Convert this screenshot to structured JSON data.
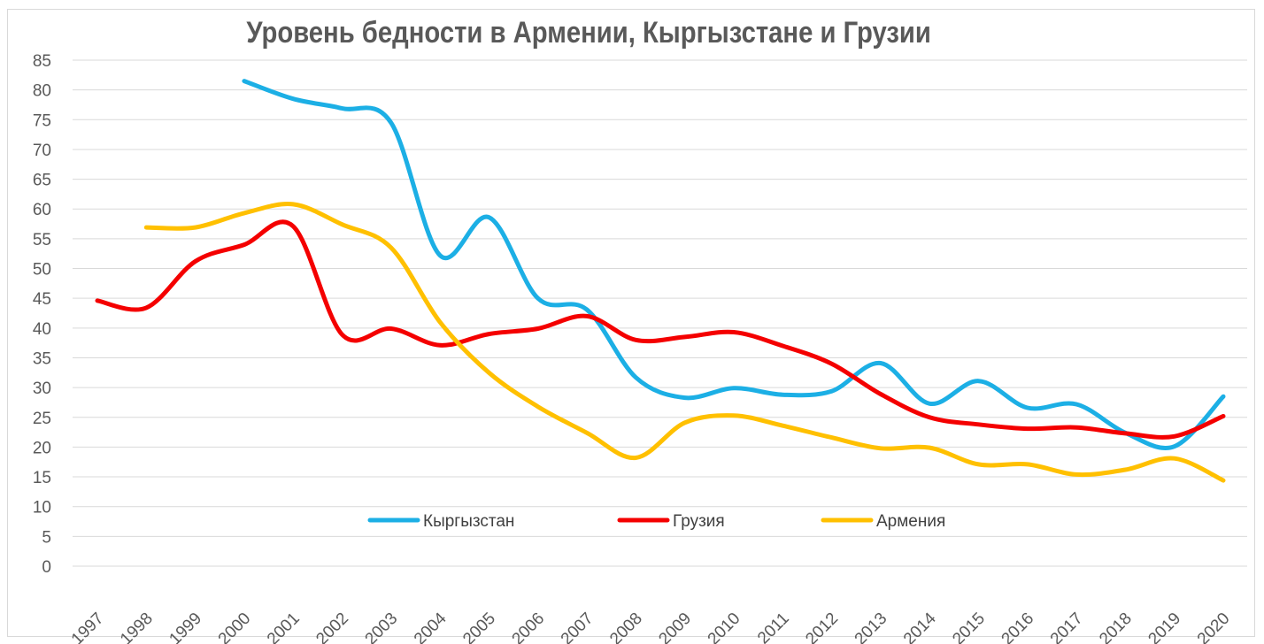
{
  "chart_data": {
    "type": "line",
    "title": "Уровень бедности в Армении, Кыргызстане и Грузии",
    "xlabel": "",
    "ylabel": "",
    "ylim": [
      0,
      85
    ],
    "y_ticks": [
      0,
      5,
      10,
      15,
      20,
      25,
      30,
      35,
      40,
      45,
      50,
      55,
      60,
      65,
      70,
      75,
      80,
      85
    ],
    "grid": true,
    "legend_position": "bottom-inside",
    "categories": [
      "1997",
      "1998",
      "1999",
      "2000",
      "2001",
      "2002",
      "2003",
      "2004",
      "2005",
      "2006",
      "2007",
      "2008",
      "2009",
      "2010",
      "2011",
      "2012",
      "2013",
      "2014",
      "2015",
      "2016",
      "2017",
      "2018",
      "2019",
      "2020"
    ],
    "series": [
      {
        "name": "Кыргызстан",
        "color": "#1CAFE5",
        "values": [
          null,
          null,
          null,
          81.5,
          78.5,
          76.9,
          74.5,
          52.2,
          58.6,
          45.0,
          43.1,
          31.7,
          28.3,
          29.9,
          28.8,
          29.4,
          34.1,
          27.3,
          31.1,
          26.6,
          27.2,
          22.4,
          20.1,
          28.5
        ]
      },
      {
        "name": "Грузия",
        "color": "#F40000",
        "values": [
          44.6,
          43.4,
          51.2,
          54.0,
          57.1,
          38.9,
          39.9,
          37.1,
          39.0,
          39.9,
          42.0,
          38.0,
          38.5,
          39.3,
          37.0,
          34.0,
          28.9,
          25.0,
          23.8,
          23.1,
          23.3,
          22.3,
          21.8,
          25.2
        ]
      },
      {
        "name": "Армения",
        "color": "#FFC000",
        "values": [
          null,
          56.9,
          56.9,
          59.3,
          60.8,
          57.4,
          53.5,
          41.0,
          32.5,
          26.8,
          22.4,
          18.2,
          24.1,
          25.3,
          23.6,
          21.6,
          19.8,
          19.9,
          17.1,
          17.1,
          15.4,
          16.2,
          18.1,
          14.4
        ]
      }
    ]
  }
}
